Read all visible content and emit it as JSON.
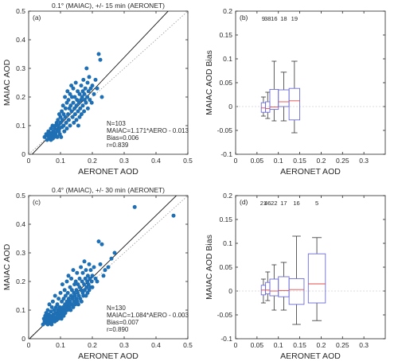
{
  "chart_data": [
    {
      "type": "scatter",
      "panel_label": "(a)",
      "title": "0.1°  (MAIAC), +/- 15 min (AERONET)",
      "xlabel": "AERONET AOD",
      "ylabel": "MAIAC AOD",
      "xlim": [
        0,
        0.5
      ],
      "ylim": [
        0,
        0.5
      ],
      "xticks": [
        "0",
        "0.1",
        "0.2",
        "0.3",
        "0.4",
        "0.5"
      ],
      "yticks": [
        "0",
        "0.1",
        "0.2",
        "0.3",
        "0.4",
        "0.5"
      ],
      "point_color": "#1f6fb4",
      "fit_slope": 1.171,
      "fit_intercept": -0.013,
      "stats": [
        "N=103",
        "MAIAC=1.171*AERO - 0.013",
        "Bias=0.006",
        "r=0.839"
      ],
      "points": [
        [
          0.05,
          0.06
        ],
        [
          0.055,
          0.07
        ],
        [
          0.058,
          0.05
        ],
        [
          0.06,
          0.065
        ],
        [
          0.062,
          0.08
        ],
        [
          0.064,
          0.055
        ],
        [
          0.066,
          0.07
        ],
        [
          0.068,
          0.06
        ],
        [
          0.07,
          0.09
        ],
        [
          0.07,
          0.05
        ],
        [
          0.072,
          0.075
        ],
        [
          0.074,
          0.065
        ],
        [
          0.075,
          0.1
        ],
        [
          0.076,
          0.055
        ],
        [
          0.078,
          0.08
        ],
        [
          0.08,
          0.07
        ],
        [
          0.08,
          0.06
        ],
        [
          0.082,
          0.09
        ],
        [
          0.084,
          0.1
        ],
        [
          0.085,
          0.075
        ],
        [
          0.086,
          0.065
        ],
        [
          0.088,
          0.11
        ],
        [
          0.09,
          0.085
        ],
        [
          0.09,
          0.06
        ],
        [
          0.092,
          0.12
        ],
        [
          0.093,
          0.1
        ],
        [
          0.095,
          0.08
        ],
        [
          0.096,
          0.14
        ],
        [
          0.097,
          0.09
        ],
        [
          0.098,
          0.07
        ],
        [
          0.1,
          0.11
        ],
        [
          0.1,
          0.13
        ],
        [
          0.102,
          0.06
        ],
        [
          0.104,
          0.15
        ],
        [
          0.105,
          0.095
        ],
        [
          0.106,
          0.12
        ],
        [
          0.108,
          0.17
        ],
        [
          0.11,
          0.1
        ],
        [
          0.11,
          0.14
        ],
        [
          0.112,
          0.08
        ],
        [
          0.114,
          0.2
        ],
        [
          0.115,
          0.13
        ],
        [
          0.116,
          0.16
        ],
        [
          0.118,
          0.11
        ],
        [
          0.12,
          0.18
        ],
        [
          0.12,
          0.09
        ],
        [
          0.122,
          0.22
        ],
        [
          0.124,
          0.14
        ],
        [
          0.125,
          0.19
        ],
        [
          0.126,
          0.12
        ],
        [
          0.128,
          0.16
        ],
        [
          0.13,
          0.21
        ],
        [
          0.13,
          0.1
        ],
        [
          0.132,
          0.17
        ],
        [
          0.134,
          0.24
        ],
        [
          0.135,
          0.15
        ],
        [
          0.136,
          0.2
        ],
        [
          0.138,
          0.13
        ],
        [
          0.14,
          0.23
        ],
        [
          0.14,
          0.18
        ],
        [
          0.142,
          0.11
        ],
        [
          0.144,
          0.16
        ],
        [
          0.145,
          0.2
        ],
        [
          0.146,
          0.14
        ],
        [
          0.148,
          0.25
        ],
        [
          0.15,
          0.17
        ],
        [
          0.15,
          0.12
        ],
        [
          0.152,
          0.19
        ],
        [
          0.154,
          0.22
        ],
        [
          0.155,
          0.15
        ],
        [
          0.156,
          0.1
        ],
        [
          0.158,
          0.18
        ],
        [
          0.16,
          0.21
        ],
        [
          0.16,
          0.13
        ],
        [
          0.162,
          0.16
        ],
        [
          0.164,
          0.19
        ],
        [
          0.165,
          0.24
        ],
        [
          0.166,
          0.14
        ],
        [
          0.168,
          0.2
        ],
        [
          0.17,
          0.17
        ],
        [
          0.17,
          0.22
        ],
        [
          0.172,
          0.26
        ],
        [
          0.174,
          0.15
        ],
        [
          0.175,
          0.21
        ],
        [
          0.176,
          0.19
        ],
        [
          0.178,
          0.23
        ],
        [
          0.18,
          0.18
        ],
        [
          0.182,
          0.3
        ],
        [
          0.184,
          0.2
        ],
        [
          0.185,
          0.25
        ],
        [
          0.186,
          0.16
        ],
        [
          0.188,
          0.22
        ],
        [
          0.19,
          0.27
        ],
        [
          0.192,
          0.19
        ],
        [
          0.195,
          0.23
        ],
        [
          0.198,
          0.18
        ],
        [
          0.2,
          0.24
        ],
        [
          0.205,
          0.21
        ],
        [
          0.21,
          0.26
        ],
        [
          0.215,
          0.23
        ],
        [
          0.22,
          0.35
        ],
        [
          0.225,
          0.33
        ],
        [
          0.23,
          0.2
        ]
      ]
    },
    {
      "type": "box",
      "panel_label": "(b)",
      "xlabel": "AERONET AOD",
      "ylabel": "MAIAC AOD Bias",
      "xlim": [
        0,
        0.35
      ],
      "ylim": [
        -0.1,
        0.2
      ],
      "xticks": [
        "0",
        "0.05",
        "0.1",
        "0.15",
        "0.2",
        "0.25",
        "0.3"
      ],
      "yticks": [
        "-0.1",
        "-0.05",
        "0",
        "0.05",
        "0.1",
        "0.15",
        "0.2"
      ],
      "box_color": "#6b6bd8",
      "median_color": "#e24a4a",
      "boxes": [
        {
          "count": "9",
          "x0": 0.06,
          "x1": 0.07,
          "q1": -0.012,
          "q3": 0.008,
          "median": -0.003,
          "wlo": -0.02,
          "whi": 0.02
        },
        {
          "count": "38",
          "x0": 0.07,
          "x1": 0.08,
          "q1": -0.012,
          "q3": 0.01,
          "median": -0.004,
          "wlo": -0.025,
          "whi": 0.03
        },
        {
          "count": "16",
          "x0": 0.08,
          "x1": 0.1,
          "q1": -0.006,
          "q3": 0.036,
          "median": -0.001,
          "wlo": -0.03,
          "whi": 0.095
        },
        {
          "count": "18",
          "x0": 0.1,
          "x1": 0.125,
          "q1": 0.0,
          "q3": 0.035,
          "median": 0.01,
          "wlo": -0.03,
          "whi": 0.072
        },
        {
          "count": "19",
          "x0": 0.125,
          "x1": 0.15,
          "q1": -0.028,
          "q3": 0.038,
          "median": 0.012,
          "wlo": -0.055,
          "whi": 0.095
        }
      ]
    },
    {
      "type": "scatter",
      "panel_label": "(c)",
      "title": "0.4°  (MAIAC), +/- 30 min (AERONET)",
      "xlabel": "AERONET AOD",
      "ylabel": "MAIAC AOD",
      "xlim": [
        0,
        0.5
      ],
      "ylim": [
        0,
        0.5
      ],
      "xticks": [
        "0",
        "0.1",
        "0.2",
        "0.3",
        "0.4",
        "0.5"
      ],
      "yticks": [
        "0",
        "0.1",
        "0.2",
        "0.3",
        "0.4",
        "0.5"
      ],
      "point_color": "#1f6fb4",
      "fit_slope": 1.084,
      "fit_intercept": -0.003,
      "stats": [
        "N=130",
        "MAIAC=1.084*AERO - 0.003",
        "Bias=0.007",
        "r=0.890"
      ],
      "points": [
        [
          0.045,
          0.05
        ],
        [
          0.048,
          0.07
        ],
        [
          0.05,
          0.06
        ],
        [
          0.052,
          0.08
        ],
        [
          0.054,
          0.055
        ],
        [
          0.055,
          0.09
        ],
        [
          0.056,
          0.065
        ],
        [
          0.058,
          0.075
        ],
        [
          0.06,
          0.05
        ],
        [
          0.06,
          0.1
        ],
        [
          0.062,
          0.06
        ],
        [
          0.063,
          0.085
        ],
        [
          0.064,
          0.07
        ],
        [
          0.065,
          0.12
        ],
        [
          0.066,
          0.055
        ],
        [
          0.068,
          0.08
        ],
        [
          0.07,
          0.065
        ],
        [
          0.07,
          0.095
        ],
        [
          0.072,
          0.05
        ],
        [
          0.073,
          0.11
        ],
        [
          0.074,
          0.075
        ],
        [
          0.075,
          0.06
        ],
        [
          0.076,
          0.13
        ],
        [
          0.078,
          0.085
        ],
        [
          0.08,
          0.07
        ],
        [
          0.08,
          0.1
        ],
        [
          0.082,
          0.06
        ],
        [
          0.083,
          0.15
        ],
        [
          0.084,
          0.09
        ],
        [
          0.085,
          0.075
        ],
        [
          0.086,
          0.11
        ],
        [
          0.088,
          0.065
        ],
        [
          0.09,
          0.12
        ],
        [
          0.09,
          0.085
        ],
        [
          0.092,
          0.1
        ],
        [
          0.093,
          0.07
        ],
        [
          0.094,
          0.14
        ],
        [
          0.095,
          0.09
        ],
        [
          0.096,
          0.075
        ],
        [
          0.098,
          0.11
        ],
        [
          0.1,
          0.08
        ],
        [
          0.1,
          0.16
        ],
        [
          0.102,
          0.1
        ],
        [
          0.103,
          0.07
        ],
        [
          0.104,
          0.13
        ],
        [
          0.105,
          0.09
        ],
        [
          0.106,
          0.19
        ],
        [
          0.108,
          0.11
        ],
        [
          0.11,
          0.08
        ],
        [
          0.11,
          0.14
        ],
        [
          0.112,
          0.1
        ],
        [
          0.113,
          0.17
        ],
        [
          0.114,
          0.12
        ],
        [
          0.115,
          0.09
        ],
        [
          0.116,
          0.15
        ],
        [
          0.118,
          0.11
        ],
        [
          0.12,
          0.2
        ],
        [
          0.12,
          0.13
        ],
        [
          0.122,
          0.1
        ],
        [
          0.123,
          0.16
        ],
        [
          0.124,
          0.12
        ],
        [
          0.125,
          0.22
        ],
        [
          0.126,
          0.14
        ],
        [
          0.128,
          0.11
        ],
        [
          0.13,
          0.18
        ],
        [
          0.13,
          0.13
        ],
        [
          0.132,
          0.1
        ],
        [
          0.133,
          0.15
        ],
        [
          0.134,
          0.21
        ],
        [
          0.135,
          0.12
        ],
        [
          0.136,
          0.17
        ],
        [
          0.138,
          0.14
        ],
        [
          0.14,
          0.24
        ],
        [
          0.14,
          0.11
        ],
        [
          0.142,
          0.16
        ],
        [
          0.143,
          0.13
        ],
        [
          0.144,
          0.19
        ],
        [
          0.145,
          0.15
        ],
        [
          0.146,
          0.12
        ],
        [
          0.148,
          0.2
        ],
        [
          0.15,
          0.14
        ],
        [
          0.15,
          0.17
        ],
        [
          0.152,
          0.23
        ],
        [
          0.153,
          0.13
        ],
        [
          0.154,
          0.16
        ],
        [
          0.155,
          0.19
        ],
        [
          0.156,
          0.12
        ],
        [
          0.158,
          0.15
        ],
        [
          0.16,
          0.21
        ],
        [
          0.16,
          0.18
        ],
        [
          0.162,
          0.14
        ],
        [
          0.164,
          0.25
        ],
        [
          0.165,
          0.17
        ],
        [
          0.166,
          0.13
        ],
        [
          0.168,
          0.2
        ],
        [
          0.17,
          0.16
        ],
        [
          0.17,
          0.23
        ],
        [
          0.172,
          0.15
        ],
        [
          0.174,
          0.19
        ],
        [
          0.175,
          0.27
        ],
        [
          0.176,
          0.17
        ],
        [
          0.178,
          0.21
        ],
        [
          0.18,
          0.15
        ],
        [
          0.18,
          0.24
        ],
        [
          0.182,
          0.18
        ],
        [
          0.184,
          0.2
        ],
        [
          0.185,
          0.16
        ],
        [
          0.186,
          0.22
        ],
        [
          0.188,
          0.19
        ],
        [
          0.19,
          0.26
        ],
        [
          0.19,
          0.17
        ],
        [
          0.192,
          0.21
        ],
        [
          0.194,
          0.18
        ],
        [
          0.195,
          0.24
        ],
        [
          0.198,
          0.2
        ],
        [
          0.2,
          0.22
        ],
        [
          0.2,
          0.18
        ],
        [
          0.205,
          0.25
        ],
        [
          0.21,
          0.21
        ],
        [
          0.215,
          0.2
        ],
        [
          0.22,
          0.34
        ],
        [
          0.225,
          0.26
        ],
        [
          0.23,
          0.33
        ],
        [
          0.235,
          0.22
        ],
        [
          0.24,
          0.24
        ],
        [
          0.25,
          0.25
        ],
        [
          0.26,
          0.28
        ],
        [
          0.27,
          0.3
        ],
        [
          0.333,
          0.46
        ],
        [
          0.455,
          0.43
        ]
      ]
    },
    {
      "type": "box",
      "panel_label": "(d)",
      "xlabel": "AERONET AOD",
      "ylabel": "MAIAC AOD Bias",
      "xlim": [
        0,
        0.35
      ],
      "ylim": [
        -0.1,
        0.2
      ],
      "xticks": [
        "0",
        "0.05",
        "0.1",
        "0.15",
        "0.2",
        "0.25",
        "0.3"
      ],
      "yticks": [
        "-0.1",
        "-0.05",
        "0",
        "0.05",
        "0.1",
        "0.15",
        "0.2"
      ],
      "box_color": "#6b6bd8",
      "median_color": "#e24a4a",
      "boxes": [
        {
          "count": "21",
          "x0": 0.06,
          "x1": 0.07,
          "q1": -0.008,
          "q3": 0.012,
          "median": 0.002,
          "wlo": -0.025,
          "whi": 0.025
        },
        {
          "count": "46",
          "x0": 0.07,
          "x1": 0.08,
          "q1": -0.006,
          "q3": 0.018,
          "median": 0.002,
          "wlo": -0.02,
          "whi": 0.04
        },
        {
          "count": "22",
          "x0": 0.08,
          "x1": 0.1,
          "q1": -0.01,
          "q3": 0.025,
          "median": 0.0,
          "wlo": -0.04,
          "whi": 0.055
        },
        {
          "count": "17",
          "x0": 0.1,
          "x1": 0.125,
          "q1": -0.012,
          "q3": 0.03,
          "median": 0.001,
          "wlo": -0.04,
          "whi": 0.06
        },
        {
          "count": "16",
          "x0": 0.125,
          "x1": 0.16,
          "q1": -0.028,
          "q3": 0.026,
          "median": 0.003,
          "wlo": -0.07,
          "whi": 0.115
        },
        {
          "count": "5",
          "x0": 0.17,
          "x1": 0.21,
          "q1": -0.025,
          "q3": 0.078,
          "median": 0.015,
          "wlo": -0.062,
          "whi": 0.112
        }
      ]
    }
  ]
}
